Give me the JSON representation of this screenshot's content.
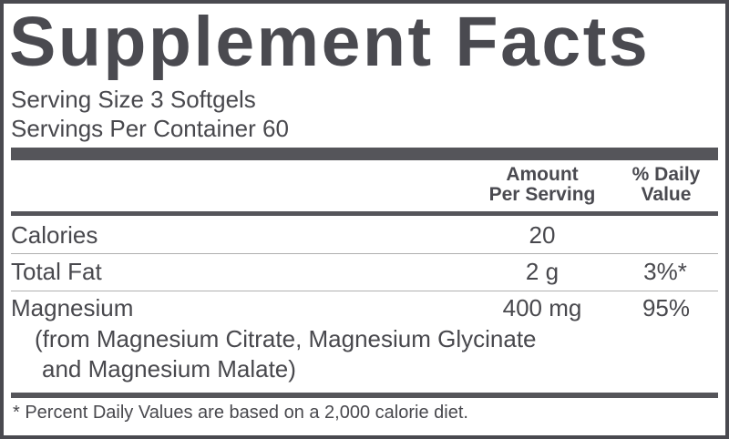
{
  "title": "Supplement Facts",
  "serving_size": "Serving Size 3 Softgels",
  "servings_per_container": "Servings Per Container 60",
  "columns": {
    "amount_line1": "Amount",
    "amount_line2": "Per Serving",
    "dv_line1": "% Daily",
    "dv_line2": "Value"
  },
  "rows": [
    {
      "name": "Calories",
      "amount": "20",
      "dv": ""
    },
    {
      "name": "Total Fat",
      "amount": "2 g",
      "dv": "3%*"
    },
    {
      "name": "Magnesium",
      "amount": "400 mg",
      "dv": "95%",
      "detail1": "(from Magnesium Citrate, Magnesium Glycinate",
      "detail2": "and Magnesium Malate)"
    }
  ],
  "footnote": "* Percent Daily Values are based on a 2,000 calorie diet.",
  "colors": {
    "ink": "#4a4a50",
    "rule": "#b0b0b0"
  }
}
